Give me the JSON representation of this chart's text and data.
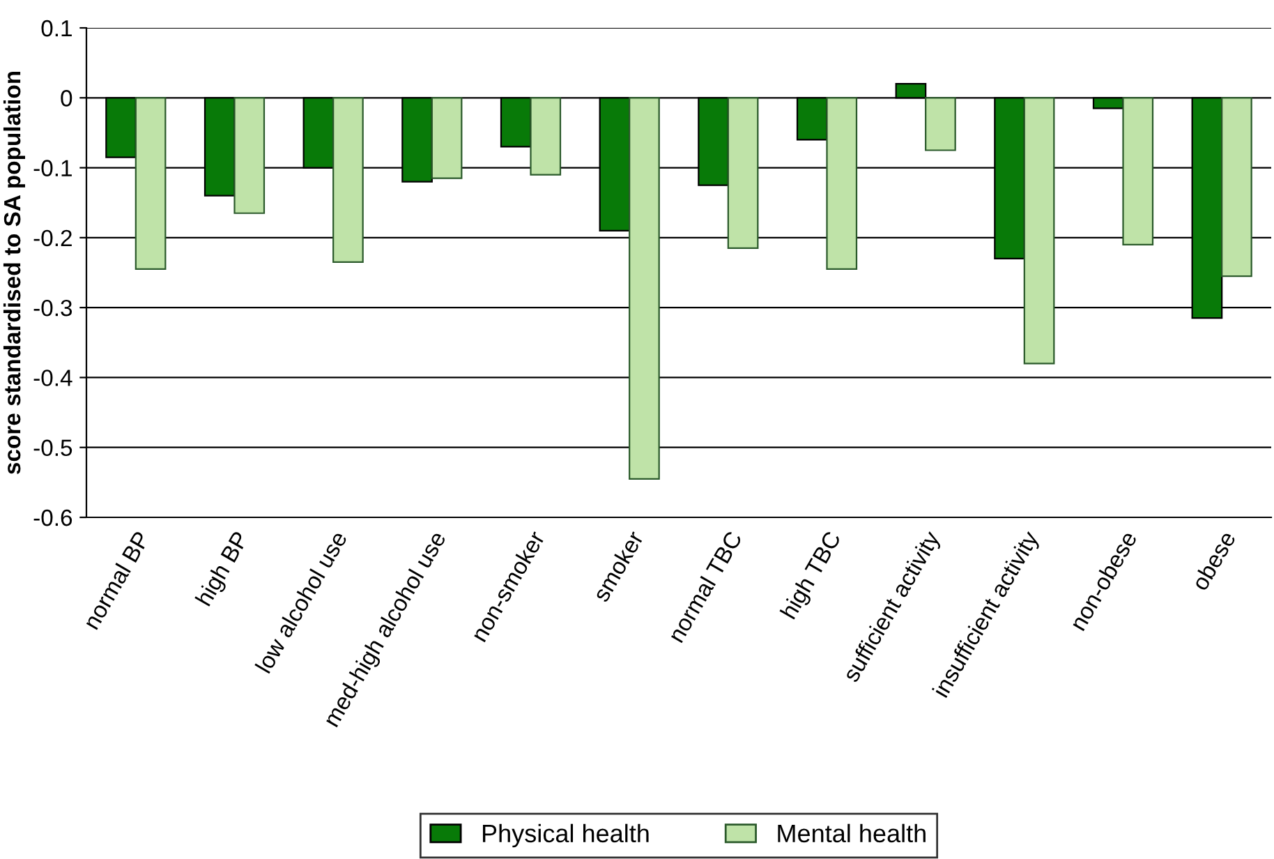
{
  "chart_data": {
    "type": "bar",
    "ylabel": "score standardised to SA population",
    "categories": [
      "normal BP",
      "high BP",
      "low alcohol use",
      "med-high alcohol use",
      "non-smoker",
      "smoker",
      "normal TBC",
      "high TBC",
      "sufficient activity",
      "insufficient activity",
      "non-obese",
      "obese"
    ],
    "series": [
      {
        "name": "Physical health",
        "color": "#087a08",
        "values": [
          -0.085,
          -0.14,
          -0.1,
          -0.12,
          -0.07,
          -0.19,
          -0.125,
          -0.06,
          0.02,
          -0.23,
          -0.015,
          -0.315
        ]
      },
      {
        "name": "Mental health",
        "color": "#bfe3a8",
        "values": [
          -0.245,
          -0.165,
          -0.235,
          -0.115,
          -0.11,
          -0.545,
          -0.215,
          -0.245,
          -0.075,
          -0.38,
          -0.21,
          -0.255
        ]
      }
    ],
    "ylim": [
      -0.6,
      0.1
    ],
    "yticks": [
      {
        "value": -0.6,
        "label": "-0.6"
      },
      {
        "value": -0.5,
        "label": "-0.5"
      },
      {
        "value": -0.4,
        "label": "-0.4"
      },
      {
        "value": -0.3,
        "label": "-0.3"
      },
      {
        "value": -0.2,
        "label": "-0.2"
      },
      {
        "value": -0.1,
        "label": "-0.1"
      },
      0,
      0.1
    ],
    "grid": "y",
    "legend": "bottom"
  }
}
